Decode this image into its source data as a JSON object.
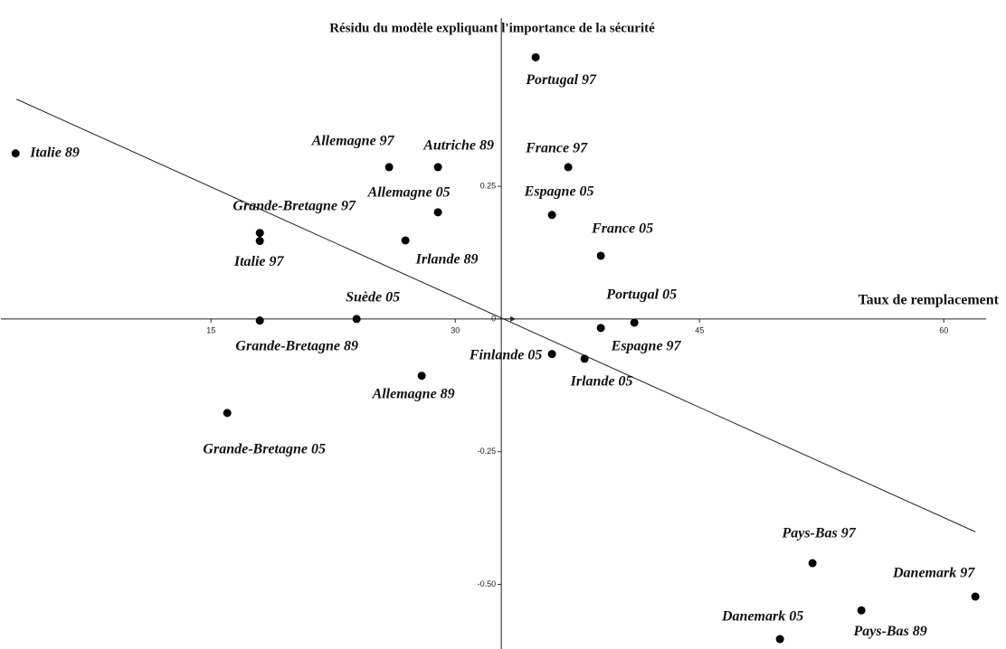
{
  "chart_data": {
    "type": "scatter",
    "title": "Résidu du modèle expliquant l'importance de la sécurité",
    "x_label": "Taux de remplacement",
    "labels": [
      "Italie 89",
      "Portugal 97",
      "Allemagne 97",
      "Autriche 89",
      "France 97",
      "Allemagne 05",
      "Espagne 05",
      "Grande-Bretagne 97",
      "Italie 97",
      "Irlande 89",
      "France 05",
      "Suède 05",
      "Grande-Bretagne 89",
      "Portugal 05",
      "Espagne 97",
      "Finlande 05",
      "Irlande 05",
      "Allemagne 89",
      "Grande-Bretagne 05",
      "Pays-Bas 97",
      "Danemark 97",
      "Pays-Bas 89",
      "Danemark 05"
    ],
    "x": [
      3.0,
      34.94,
      25.94,
      28.94,
      36.94,
      28.94,
      35.94,
      18.0,
      18.0,
      26.94,
      38.94,
      23.94,
      18.0,
      41.0,
      38.94,
      35.94,
      37.94,
      27.94,
      16.0,
      51.94,
      61.94,
      54.94,
      49.94
    ],
    "y": [
      0.312,
      0.493,
      0.286,
      0.286,
      0.286,
      0.201,
      0.196,
      0.162,
      0.147,
      0.148,
      0.119,
      0.0,
      -0.003,
      -0.007,
      -0.017,
      -0.066,
      -0.075,
      -0.107,
      -0.177,
      -0.46,
      -0.523,
      -0.549,
      -0.603
    ],
    "color": "#000000",
    "trend_line": {
      "x": [
        3.06,
        61.94
      ],
      "y": [
        0.414,
        -0.401
      ]
    },
    "xlim": [
      2.1,
      62.6
    ],
    "ylim": [
      -0.62,
      0.56
    ],
    "xticks": [
      15,
      30,
      45,
      60
    ],
    "yticks": [
      0.25,
      0,
      -0.25,
      {
        "value": -0.5,
        "label": "-0.50"
      }
    ],
    "yaxis_crossing": 32.83,
    "grid": false
  }
}
